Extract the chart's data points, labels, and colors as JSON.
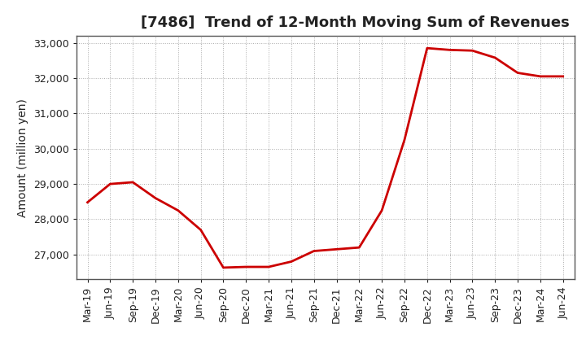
{
  "title": "[7486]  Trend of 12-Month Moving Sum of Revenues",
  "ylabel": "Amount (million yen)",
  "line_color": "#cc0000",
  "background_color": "#ffffff",
  "grid_color": "#aaaaaa",
  "x_labels": [
    "Mar-19",
    "Jun-19",
    "Sep-19",
    "Dec-19",
    "Mar-20",
    "Jun-20",
    "Sep-20",
    "Dec-20",
    "Mar-21",
    "Jun-21",
    "Sep-21",
    "Dec-21",
    "Mar-22",
    "Jun-22",
    "Sep-22",
    "Dec-22",
    "Mar-23",
    "Jun-23",
    "Sep-23",
    "Dec-23",
    "Mar-24",
    "Jun-24"
  ],
  "values": [
    28480,
    29000,
    29050,
    28600,
    28250,
    27700,
    26630,
    26650,
    26650,
    26800,
    27100,
    27150,
    27200,
    28250,
    30250,
    32850,
    32800,
    32780,
    32580,
    32150,
    32050,
    32050
  ],
  "ylim": [
    26300,
    33200
  ],
  "yticks": [
    27000,
    28000,
    29000,
    30000,
    31000,
    32000,
    33000
  ],
  "title_fontsize": 13,
  "label_fontsize": 10,
  "tick_fontsize": 9
}
